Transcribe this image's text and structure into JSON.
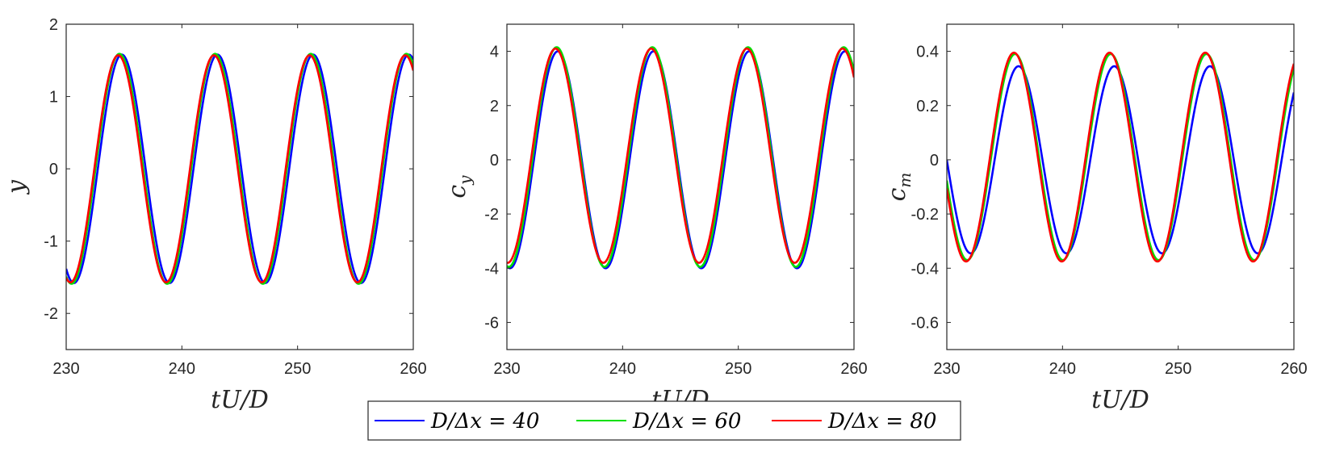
{
  "legend": [
    {
      "text": "D/Δx = 40",
      "color": "#0000ff"
    },
    {
      "text": "D/Δx = 60",
      "color": "#00e000"
    },
    {
      "text": "D/Δx = 80",
      "color": "#ff0000"
    }
  ],
  "chart_data": [
    {
      "type": "line",
      "xlabel": "tU/D",
      "ylabel": "y",
      "xlim": [
        230,
        260
      ],
      "ylim": [
        -2.5,
        2
      ],
      "xticks": [
        230,
        240,
        250,
        260
      ],
      "yticks": [
        -2,
        -1,
        0,
        1,
        2
      ],
      "series": [
        {
          "name": "D/Δx = 40",
          "color": "#0000ff",
          "wave": {
            "mean": 0,
            "amplitude": 1.58,
            "period": 8.27,
            "peak_times": [
              234.8,
              243.1,
              251.4,
              259.6
            ]
          }
        },
        {
          "name": "D/Δx = 60",
          "color": "#00e000",
          "wave": {
            "mean": 0,
            "amplitude": 1.59,
            "period": 8.27,
            "peak_times": [
              234.6,
              242.9,
              251.2,
              259.5
            ]
          }
        },
        {
          "name": "D/Δx = 80",
          "color": "#ff0000",
          "wave": {
            "mean": 0,
            "amplitude": 1.57,
            "period": 8.27,
            "peak_times": [
              234.5,
              242.8,
              251.0,
              259.3
            ]
          }
        }
      ]
    },
    {
      "type": "line",
      "xlabel": "tU/D",
      "ylabel": "c_y",
      "xlim": [
        230,
        260
      ],
      "ylim": [
        -7,
        5
      ],
      "xticks": [
        230,
        240,
        250,
        260
      ],
      "yticks": [
        -6,
        -4,
        -2,
        0,
        2,
        4
      ],
      "series": [
        {
          "name": "D/Δx = 40",
          "color": "#0000ff",
          "wave": {
            "mean": 0,
            "amplitude": 4.0,
            "period": 8.27,
            "peak_times": [
              234.4,
              242.7,
              251.0,
              259.2
            ]
          }
        },
        {
          "name": "D/Δx = 60",
          "color": "#00e000",
          "wave": {
            "mean": 0.1,
            "amplitude": 4.05,
            "period": 8.27,
            "peak_times": [
              234.3,
              242.5,
              250.8,
              259.1
            ]
          }
        },
        {
          "name": "D/Δx = 80",
          "color": "#ff0000",
          "wave": {
            "mean": 0.15,
            "amplitude": 3.95,
            "period": 8.27,
            "peak_times": [
              234.2,
              242.4,
              250.7,
              259.0
            ]
          }
        }
      ]
    },
    {
      "type": "line",
      "xlabel": "tU/D",
      "ylabel": "c_m",
      "xlim": [
        230,
        260
      ],
      "ylim": [
        -0.7,
        0.5
      ],
      "xticks": [
        230,
        240,
        250,
        260
      ],
      "yticks": [
        -0.6,
        -0.4,
        -0.2,
        0,
        0.2,
        0.4
      ],
      "series": [
        {
          "name": "D/Δx = 40",
          "color": "#0000ff",
          "wave": {
            "mean": 0,
            "amplitude": 0.345,
            "period": 8.27,
            "peak_times": [
              236.2,
              244.4,
              252.7,
              260.9
            ]
          }
        },
        {
          "name": "D/Δx = 60",
          "color": "#00e000",
          "wave": {
            "mean": 0.01,
            "amplitude": 0.38,
            "period": 8.27,
            "peak_times": [
              235.9,
              244.1,
              252.4,
              260.6
            ]
          }
        },
        {
          "name": "D/Δx = 80",
          "color": "#ff0000",
          "wave": {
            "mean": 0.01,
            "amplitude": 0.385,
            "period": 8.27,
            "peak_times": [
              235.8,
              244.0,
              252.3,
              260.5
            ]
          }
        }
      ]
    }
  ]
}
